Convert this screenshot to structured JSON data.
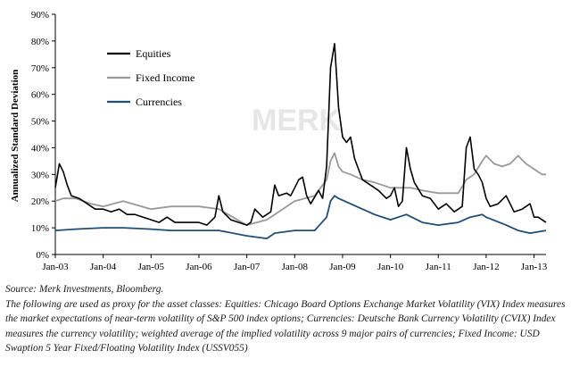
{
  "chart_data": {
    "type": "line",
    "title": "",
    "xlabel": "",
    "ylabel": "Annualized Standard Deviation",
    "ylim": [
      0,
      90
    ],
    "y_ticks": [
      "0%",
      "10%",
      "20%",
      "30%",
      "40%",
      "50%",
      "60%",
      "70%",
      "80%",
      "90%"
    ],
    "x_ticks": [
      "Jan-03",
      "Jan-04",
      "Jan-05",
      "Jan-06",
      "Jan-07",
      "Jan-08",
      "Jan-09",
      "Jan-10",
      "Jan-11",
      "Jan-12",
      "Jan-13"
    ],
    "x_range": [
      "2003-01",
      "2013-04"
    ],
    "grid": false,
    "legend_position": "top-left",
    "watermark": "MERK",
    "series": [
      {
        "name": "Equities",
        "color": "#000000",
        "x": [
          "2003-01",
          "2003-02",
          "2003-03",
          "2003-04",
          "2003-05",
          "2003-07",
          "2003-09",
          "2003-11",
          "2004-01",
          "2004-03",
          "2004-05",
          "2004-07",
          "2004-09",
          "2004-11",
          "2005-01",
          "2005-03",
          "2005-05",
          "2005-07",
          "2005-09",
          "2005-11",
          "2006-01",
          "2006-03",
          "2006-05",
          "2006-06",
          "2006-07",
          "2006-09",
          "2006-11",
          "2007-01",
          "2007-02",
          "2007-03",
          "2007-05",
          "2007-07",
          "2007-08",
          "2007-09",
          "2007-11",
          "2007-12",
          "2008-01",
          "2008-02",
          "2008-03",
          "2008-04",
          "2008-05",
          "2008-07",
          "2008-08",
          "2008-09",
          "2008-10",
          "2008-11",
          "2008-12",
          "2009-01",
          "2009-02",
          "2009-03",
          "2009-04",
          "2009-05",
          "2009-06",
          "2009-08",
          "2009-10",
          "2009-12",
          "2010-01",
          "2010-02",
          "2010-03",
          "2010-04",
          "2010-05",
          "2010-06",
          "2010-07",
          "2010-09",
          "2010-11",
          "2011-01",
          "2011-03",
          "2011-05",
          "2011-07",
          "2011-08",
          "2011-09",
          "2011-10",
          "2011-11",
          "2011-12",
          "2012-01",
          "2012-02",
          "2012-04",
          "2012-06",
          "2012-08",
          "2012-10",
          "2012-12",
          "2013-01",
          "2013-02",
          "2013-03",
          "2013-04"
        ],
        "values": [
          25,
          34,
          31,
          26,
          22,
          21,
          19,
          17,
          17,
          16,
          17,
          15,
          15,
          14,
          13,
          12,
          14,
          12,
          12,
          12,
          12,
          11,
          14,
          22,
          16,
          13,
          12,
          11,
          12,
          17,
          14,
          16,
          26,
          22,
          23,
          22,
          25,
          28,
          29,
          22,
          19,
          24,
          21,
          33,
          70,
          79,
          55,
          44,
          42,
          44,
          36,
          32,
          28,
          26,
          24,
          21,
          22,
          25,
          18,
          20,
          40,
          32,
          27,
          22,
          21,
          17,
          19,
          16,
          18,
          40,
          44,
          32,
          30,
          27,
          21,
          18,
          19,
          22,
          16,
          17,
          19,
          14,
          14,
          13,
          12
        ]
      },
      {
        "name": "Fixed Income",
        "color": "#999999",
        "x": [
          "2003-01",
          "2003-03",
          "2003-06",
          "2003-08",
          "2003-10",
          "2004-01",
          "2004-06",
          "2005-01",
          "2005-06",
          "2006-01",
          "2006-06",
          "2007-01",
          "2007-06",
          "2007-08",
          "2008-01",
          "2008-06",
          "2008-09",
          "2008-10",
          "2008-11",
          "2008-12",
          "2009-01",
          "2009-03",
          "2009-06",
          "2009-09",
          "2010-01",
          "2010-06",
          "2010-09",
          "2011-01",
          "2011-06",
          "2011-08",
          "2011-10",
          "2011-12",
          "2012-01",
          "2012-03",
          "2012-05",
          "2012-07",
          "2012-09",
          "2012-11",
          "2013-01",
          "2013-03",
          "2013-04"
        ],
        "values": [
          20,
          21,
          21,
          20,
          19,
          18,
          20,
          17,
          18,
          18,
          17,
          11,
          13,
          15,
          20,
          22,
          28,
          35,
          38,
          33,
          31,
          30,
          28,
          27,
          25,
          25,
          24,
          23,
          23,
          28,
          30,
          35,
          37,
          34,
          33,
          34,
          37,
          34,
          32,
          30,
          30
        ]
      },
      {
        "name": "Currencies",
        "color": "#1f4e79",
        "x": [
          "2003-01",
          "2003-06",
          "2004-01",
          "2004-06",
          "2005-01",
          "2005-06",
          "2006-01",
          "2006-06",
          "2007-01",
          "2007-06",
          "2007-08",
          "2008-01",
          "2008-06",
          "2008-09",
          "2008-10",
          "2008-11",
          "2008-12",
          "2009-03",
          "2009-06",
          "2009-09",
          "2010-01",
          "2010-05",
          "2010-09",
          "2011-01",
          "2011-06",
          "2011-09",
          "2011-12",
          "2012-01",
          "2012-06",
          "2012-09",
          "2012-12",
          "2013-02",
          "2013-04"
        ],
        "values": [
          9,
          9.5,
          10,
          10,
          9.5,
          9,
          9,
          9,
          7,
          6,
          8,
          9,
          9,
          14,
          20,
          22,
          21,
          19,
          17,
          15,
          13,
          15,
          12,
          11,
          12,
          14,
          15,
          14,
          11,
          9,
          8,
          8.5,
          9
        ]
      }
    ]
  },
  "notes": {
    "source": "Source: Merk Investments, Bloomberg.",
    "description": "The following are used as proxy for the asset classes: Equities: Chicago Board Options Exchange Market Volatility (VIX) Index measures the market expectations of near-term volatility of S&P 500 index options; Currencies: Deutsche Bank Currency Volatility (CVIX) Index measures the currency volatility; weighted average of the implied volatility across 9 major pairs of currencies; Fixed Income: USD Swaption 5 Year Fixed/Floating Volatility Index (USSV055)"
  }
}
